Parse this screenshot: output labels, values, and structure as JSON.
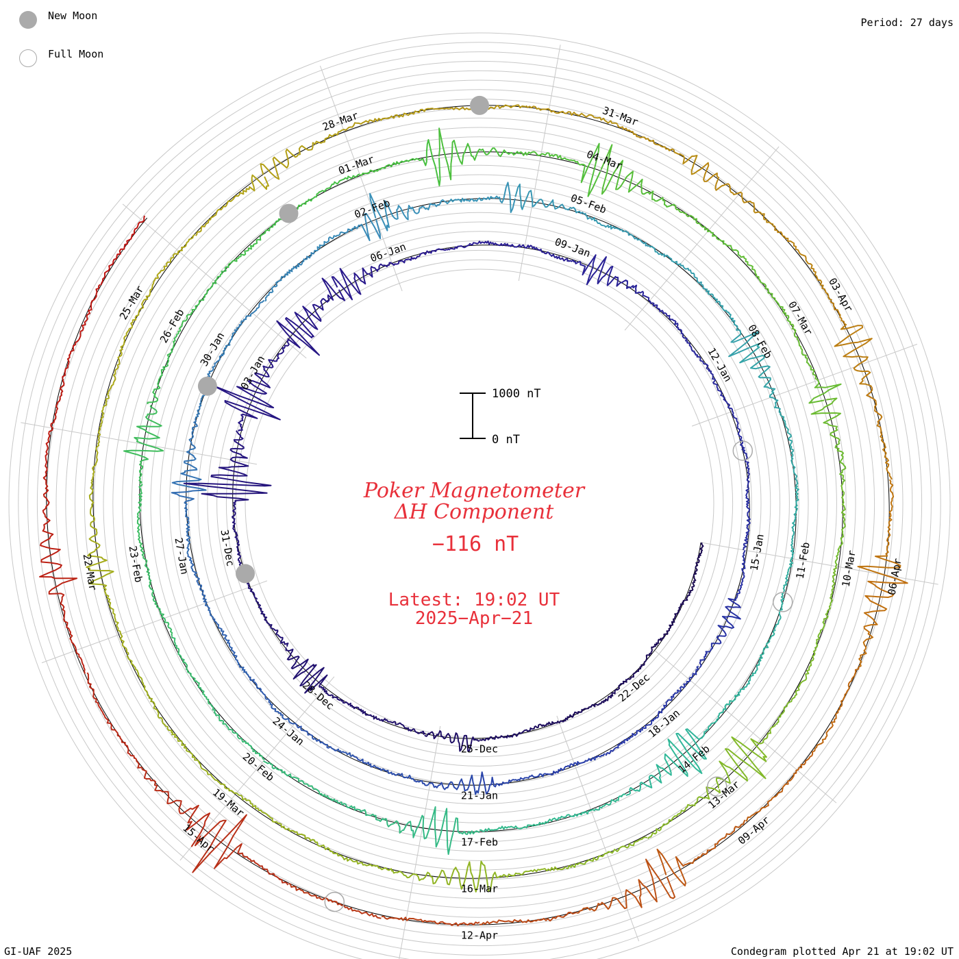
{
  "header": {
    "period_label": "Period: 27 days",
    "footer_left": "GI-UAF 2025",
    "footer_right": "Condegram plotted Apr 21 at 19:02 UT"
  },
  "legend": {
    "new_moon_label": "New Moon",
    "full_moon_label": "Full Moon",
    "new_moon_color": "#aaaaaa",
    "full_moon_color": "#aaaaaa"
  },
  "center": {
    "title_line1": "Poker Magnetometer",
    "title_line2": "ΔH Component",
    "current_value": "−116 nT",
    "latest_time": "Latest: 19:02 UT",
    "latest_date": "2025−Apr−21",
    "text_color": "#e8303a"
  },
  "chart_data": {
    "type": "line",
    "subtype": "condegram (spiral, 27-day rotation)",
    "title": "Poker Magnetometer ΔH Component",
    "ylabel": "ΔH (nT)",
    "period_days": 27,
    "scale_bar": {
      "top_label": "1000 nT",
      "bottom_label": "0 nT",
      "value": 1000
    },
    "current_value_nT": -116,
    "latest": "2025-Apr-21 19:02 UT",
    "start_date": "2024-12-19",
    "grid": true,
    "rotations": [
      {
        "start": "19-Dec",
        "color": "#1a0a50"
      },
      {
        "start": "15-Jan",
        "color": "#2838a8"
      },
      {
        "start": "11-Feb",
        "color": "#30a8b8"
      },
      {
        "start": "10-Mar",
        "color": "#3cb848"
      },
      {
        "start": "06-Apr",
        "color": "#a8a818"
      }
    ],
    "date_labels": [
      {
        "label": "22-Dec",
        "day": 3
      },
      {
        "label": "25-Dec",
        "day": 6
      },
      {
        "label": "28-Dec",
        "day": 9
      },
      {
        "label": "31-Dec",
        "day": 12
      },
      {
        "label": "03-Jan",
        "day": 15
      },
      {
        "label": "06-Jan",
        "day": 18
      },
      {
        "label": "09-Jan",
        "day": 21
      },
      {
        "label": "12-Jan",
        "day": 24
      },
      {
        "label": "15-Jan",
        "day": 27
      },
      {
        "label": "18-Jan",
        "day": 30
      },
      {
        "label": "21-Jan",
        "day": 33
      },
      {
        "label": "24-Jan",
        "day": 36
      },
      {
        "label": "27-Jan",
        "day": 39
      },
      {
        "label": "30-Jan",
        "day": 42
      },
      {
        "label": "02-Feb",
        "day": 45
      },
      {
        "label": "05-Feb",
        "day": 48
      },
      {
        "label": "08-Feb",
        "day": 51
      },
      {
        "label": "11-Feb",
        "day": 54
      },
      {
        "label": "14-Feb",
        "day": 57
      },
      {
        "label": "17-Feb",
        "day": 60
      },
      {
        "label": "20-Feb",
        "day": 63
      },
      {
        "label": "23-Feb",
        "day": 66
      },
      {
        "label": "26-Feb",
        "day": 69
      },
      {
        "label": "01-Mar",
        "day": 72
      },
      {
        "label": "04-Mar",
        "day": 75
      },
      {
        "label": "07-Mar",
        "day": 78
      },
      {
        "label": "10-Mar",
        "day": 81
      },
      {
        "label": "13-Mar",
        "day": 84
      },
      {
        "label": "16-Mar",
        "day": 87
      },
      {
        "label": "19-Mar",
        "day": 90
      },
      {
        "label": "22-Mar",
        "day": 93
      },
      {
        "label": "25-Mar",
        "day": 96
      },
      {
        "label": "28-Mar",
        "day": 99
      },
      {
        "label": "31-Mar",
        "day": 102
      },
      {
        "label": "03-Apr",
        "day": 105
      },
      {
        "label": "06-Apr",
        "day": 108
      },
      {
        "label": "09-Apr",
        "day": 111
      },
      {
        "label": "12-Apr",
        "day": 114
      },
      {
        "label": "15-Apr",
        "day": 117
      }
    ],
    "new_moons": [
      {
        "date": "30-Dec",
        "day": 11.5
      },
      {
        "date": "29-Jan",
        "day": 41.5
      },
      {
        "date": "28-Feb",
        "day": 71.0
      },
      {
        "date": "29-Mar",
        "day": 100.5
      }
    ],
    "full_moons": [
      {
        "date": "13-Jan",
        "day": 25.4
      },
      {
        "date": "12-Feb",
        "day": 54.6
      },
      {
        "date": "14-Mar",
        "day": 84.0
      },
      {
        "date": "13-Apr",
        "day": 115.5
      }
    ],
    "disturbances": [
      {
        "day": 6.3,
        "amp": 250
      },
      {
        "day": 9.3,
        "amp": 400
      },
      {
        "day": 13.0,
        "amp": 900
      },
      {
        "day": 14.5,
        "amp": 700
      },
      {
        "day": 16.0,
        "amp": 600
      },
      {
        "day": 17.0,
        "amp": 500
      },
      {
        "day": 21.5,
        "amp": 300
      },
      {
        "day": 28.0,
        "amp": 250
      },
      {
        "day": 33.0,
        "amp": 250
      },
      {
        "day": 40.0,
        "amp": 350
      },
      {
        "day": 45.0,
        "amp": 450
      },
      {
        "day": 47.0,
        "amp": 300
      },
      {
        "day": 51.0,
        "amp": 400
      },
      {
        "day": 57.0,
        "amp": 600
      },
      {
        "day": 60.5,
        "amp": 500
      },
      {
        "day": 67.5,
        "amp": 400
      },
      {
        "day": 73.0,
        "amp": 500
      },
      {
        "day": 75.0,
        "amp": 600
      },
      {
        "day": 79.0,
        "amp": 400
      },
      {
        "day": 83.5,
        "amp": 500
      },
      {
        "day": 87.0,
        "amp": 400
      },
      {
        "day": 93.0,
        "amp": 300
      },
      {
        "day": 98.0,
        "amp": 350
      },
      {
        "day": 103.0,
        "amp": 300
      },
      {
        "day": 105.5,
        "amp": 400
      },
      {
        "day": 108.0,
        "amp": 500
      },
      {
        "day": 112.0,
        "amp": 600
      },
      {
        "day": 116.8,
        "amp": 700
      },
      {
        "day": 120.0,
        "amp": 350
      }
    ]
  }
}
